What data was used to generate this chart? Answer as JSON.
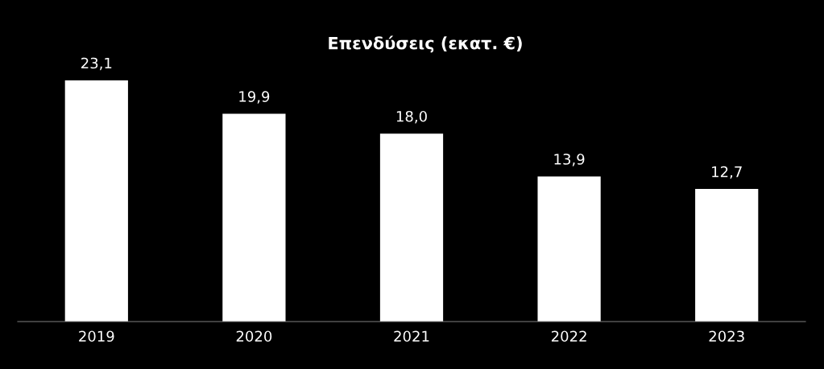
{
  "chart_data": {
    "type": "bar",
    "title": "Επενδύσεις (εκατ. €)",
    "categories": [
      "2019",
      "2020",
      "2021",
      "2022",
      "2023"
    ],
    "values": [
      23.1,
      19.9,
      18.0,
      13.9,
      12.7
    ],
    "value_labels": [
      "23,1",
      "19,9",
      "18,0",
      "13,9",
      "12,7"
    ],
    "color": "#ffffff",
    "grid": false,
    "legend": false
  }
}
